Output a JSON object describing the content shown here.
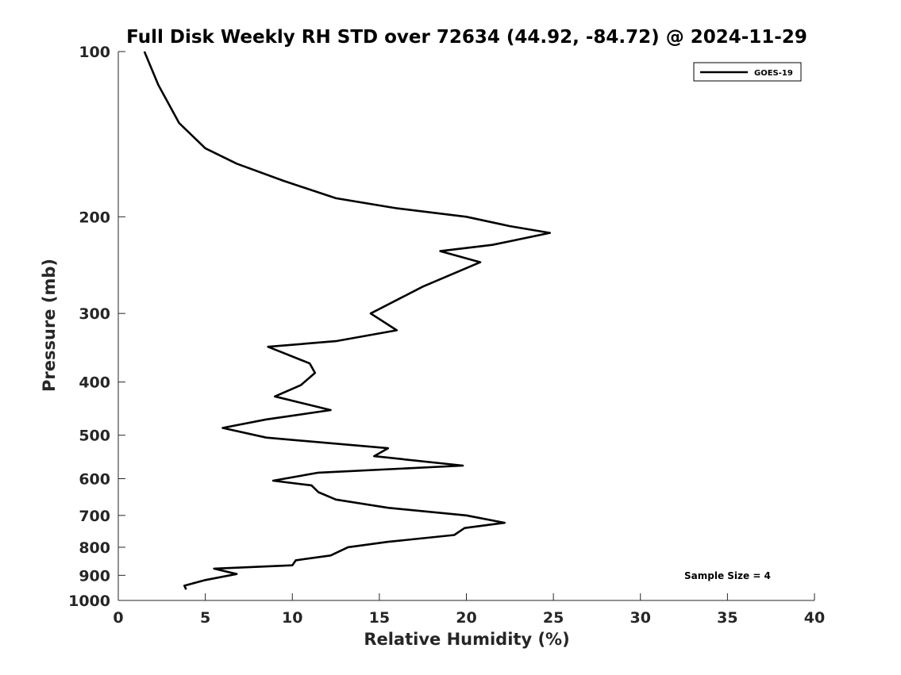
{
  "chart_data": {
    "type": "line",
    "title": "Full Disk Weekly RH STD over 72634 (44.92, -84.72) @ 2024-11-29",
    "xlabel": "Relative Humidity (%)",
    "ylabel": "Pressure (mb)",
    "xlim": [
      0,
      40
    ],
    "ylim": [
      100,
      1000
    ],
    "yscale": "log",
    "yaxis_reversed": true,
    "xticks": [
      0,
      5,
      10,
      15,
      20,
      25,
      30,
      35,
      40
    ],
    "yticks": [
      100,
      200,
      300,
      400,
      500,
      600,
      700,
      800,
      900,
      1000
    ],
    "grid": false,
    "legend_position": "top-right",
    "series": [
      {
        "name": "GOES-19",
        "color": "#000000",
        "points": [
          [
            1.5,
            100
          ],
          [
            2.3,
            115
          ],
          [
            3.5,
            135
          ],
          [
            5.0,
            150
          ],
          [
            6.8,
            160
          ],
          [
            9.5,
            172
          ],
          [
            12.5,
            185
          ],
          [
            16.0,
            193
          ],
          [
            20.0,
            200
          ],
          [
            22.5,
            208
          ],
          [
            24.8,
            214
          ],
          [
            21.5,
            225
          ],
          [
            18.5,
            231
          ],
          [
            20.8,
            242
          ],
          [
            17.5,
            268
          ],
          [
            14.5,
            300
          ],
          [
            16.0,
            322
          ],
          [
            12.5,
            337
          ],
          [
            8.6,
            345
          ],
          [
            11.0,
            370
          ],
          [
            11.3,
            385
          ],
          [
            10.5,
            405
          ],
          [
            9.0,
            425
          ],
          [
            12.2,
            450
          ],
          [
            8.5,
            468
          ],
          [
            6.0,
            485
          ],
          [
            8.5,
            505
          ],
          [
            15.5,
            528
          ],
          [
            14.7,
            546
          ],
          [
            19.8,
            568
          ],
          [
            11.5,
            585
          ],
          [
            8.9,
            605
          ],
          [
            11.1,
            617
          ],
          [
            11.5,
            635
          ],
          [
            12.5,
            655
          ],
          [
            15.5,
            678
          ],
          [
            20.0,
            700
          ],
          [
            22.2,
            722
          ],
          [
            19.9,
            738
          ],
          [
            19.3,
            760
          ],
          [
            15.5,
            782
          ],
          [
            13.2,
            800
          ],
          [
            12.2,
            828
          ],
          [
            10.2,
            845
          ],
          [
            10.0,
            863
          ],
          [
            5.5,
            875
          ],
          [
            6.8,
            895
          ],
          [
            5.0,
            918
          ],
          [
            3.8,
            940
          ],
          [
            3.9,
            955
          ]
        ]
      }
    ],
    "annotations": [
      "Sample Size = 4"
    ]
  }
}
